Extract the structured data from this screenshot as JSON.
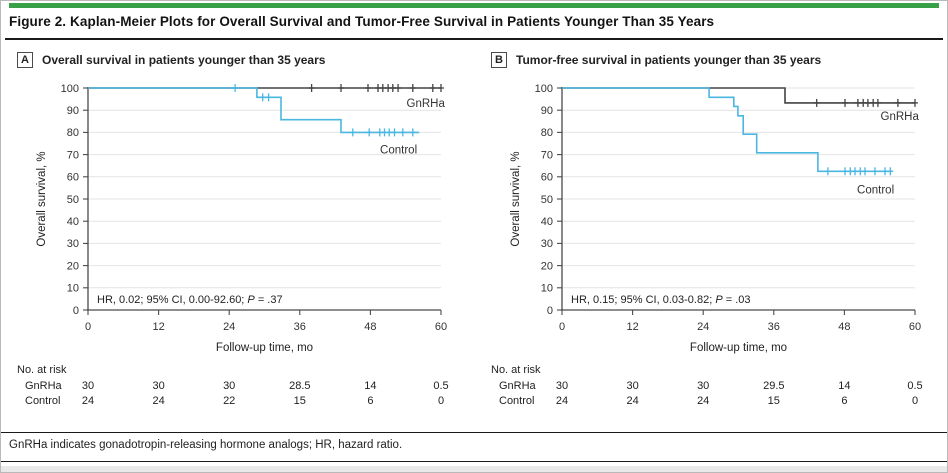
{
  "figure": {
    "accent_bar_color": "#38a148",
    "title": "Figure 2. Kaplan-Meier Plots for Overall Survival and Tumor-Free Survival in Patients Younger Than 35 Years",
    "footnote": "GnRHa indicates gonadotropin-releasing hormone analogs; HR, hazard ratio."
  },
  "chart_data": [
    {
      "type": "line",
      "subtype": "kaplan-meier-step",
      "panel_label": "A",
      "title": "Overall survival in patients younger than 35 years",
      "xlabel": "Follow-up time, mo",
      "ylabel": "Overall survival, %",
      "xlim": [
        0,
        60
      ],
      "ylim": [
        0,
        100
      ],
      "xticks": [
        0,
        12,
        24,
        36,
        48,
        60
      ],
      "yticks": [
        0,
        10,
        20,
        30,
        40,
        50,
        60,
        70,
        80,
        90,
        100
      ],
      "grid": "horizontal",
      "legend_position": "inline-right",
      "annotation": {
        "pre": "HR, 0.02; 95% CI, 0.00-92.60; ",
        "p": "P",
        "post": " = .37"
      },
      "series": [
        {
          "name": "GnRHa",
          "color": "#414345",
          "steps": [
            [
              0,
              100
            ],
            [
              60,
              100
            ]
          ],
          "censors": [
            [
              38,
              100
            ],
            [
              43,
              100
            ],
            [
              47.6,
              100
            ],
            [
              49.3,
              100
            ],
            [
              50.1,
              100
            ],
            [
              51,
              100
            ],
            [
              51.8,
              100
            ],
            [
              52.7,
              100
            ],
            [
              55.2,
              100
            ],
            [
              58.6,
              100
            ],
            [
              60,
              100
            ]
          ],
          "label_x": 57.4,
          "label_y": 91.5
        },
        {
          "name": "Control",
          "color": "#4ab7e1",
          "steps": [
            [
              0,
              100
            ],
            [
              28.7,
              100
            ],
            [
              28.7,
              95.8
            ],
            [
              32.8,
              95.8
            ],
            [
              32.8,
              85.7
            ],
            [
              43,
              85.7
            ],
            [
              43,
              80
            ],
            [
              56.3,
              80
            ]
          ],
          "censors": [
            [
              25,
              100
            ],
            [
              29.7,
              95.8
            ],
            [
              30.7,
              95.8
            ],
            [
              45,
              80
            ],
            [
              47.8,
              80
            ],
            [
              49.6,
              80
            ],
            [
              50.4,
              80
            ],
            [
              51.2,
              80
            ],
            [
              52.1,
              80
            ],
            [
              53.5,
              80
            ],
            [
              55.2,
              80
            ]
          ],
          "label_x": 52.8,
          "label_y": 70.5
        }
      ],
      "at_risk": {
        "header": "No. at risk",
        "rows": [
          {
            "name": "GnRHa",
            "values": [
              "30",
              "30",
              "30",
              "28.5",
              "14",
              "0.5"
            ]
          },
          {
            "name": "Control",
            "values": [
              "24",
              "24",
              "22",
              "15",
              "6",
              "0"
            ]
          }
        ]
      }
    },
    {
      "type": "line",
      "subtype": "kaplan-meier-step",
      "panel_label": "B",
      "title": "Tumor-free survival in patients younger than 35 years",
      "xlabel": "Follow-up time, mo",
      "ylabel": "Overall survival, %",
      "xlim": [
        0,
        60
      ],
      "ylim": [
        0,
        100
      ],
      "xticks": [
        0,
        12,
        24,
        36,
        48,
        60
      ],
      "yticks": [
        0,
        10,
        20,
        30,
        40,
        50,
        60,
        70,
        80,
        90,
        100
      ],
      "grid": "horizontal",
      "legend_position": "inline-right",
      "annotation": {
        "pre": "HR, 0.15; 95% CI, 0.03-0.82; ",
        "p": "P",
        "post": " = .03"
      },
      "series": [
        {
          "name": "GnRHa",
          "color": "#414345",
          "steps": [
            [
              0,
              100
            ],
            [
              37.9,
              100
            ],
            [
              37.9,
              93.3
            ],
            [
              60,
              93.3
            ]
          ],
          "censors": [
            [
              43.3,
              93.3
            ],
            [
              48.1,
              93.3
            ],
            [
              50.3,
              93.3
            ],
            [
              51.2,
              93.3
            ],
            [
              52,
              93.3
            ],
            [
              52.9,
              93.3
            ],
            [
              53.7,
              93.3
            ],
            [
              57.1,
              93.3
            ],
            [
              60,
              93.3
            ]
          ],
          "label_x": 57.4,
          "label_y": 85.5
        },
        {
          "name": "Control",
          "color": "#4ab7e1",
          "steps": [
            [
              0,
              100
            ],
            [
              25,
              100
            ],
            [
              25,
              95.8
            ],
            [
              29.2,
              95.8
            ],
            [
              29.2,
              91.7
            ],
            [
              29.9,
              91.7
            ],
            [
              29.9,
              87.5
            ],
            [
              30.8,
              87.5
            ],
            [
              30.8,
              79.2
            ],
            [
              33.1,
              79.2
            ],
            [
              33.1,
              70.8
            ],
            [
              43.5,
              70.8
            ],
            [
              43.5,
              62.5
            ],
            [
              56.1,
              62.5
            ]
          ],
          "censors": [
            [
              45.2,
              62.5
            ],
            [
              48.1,
              62.5
            ],
            [
              49,
              62.5
            ],
            [
              49.8,
              62.5
            ],
            [
              50.7,
              62.5
            ],
            [
              51.5,
              62.5
            ],
            [
              53.2,
              62.5
            ],
            [
              54.9,
              62.5
            ],
            [
              55.8,
              62.5
            ]
          ],
          "label_x": 53.3,
          "label_y": 52.5
        }
      ],
      "at_risk": {
        "header": "No. at risk",
        "rows": [
          {
            "name": "GnRHa",
            "values": [
              "30",
              "30",
              "30",
              "29.5",
              "14",
              "0.5"
            ]
          },
          {
            "name": "Control",
            "values": [
              "24",
              "24",
              "24",
              "15",
              "6",
              "0"
            ]
          }
        ]
      }
    }
  ]
}
